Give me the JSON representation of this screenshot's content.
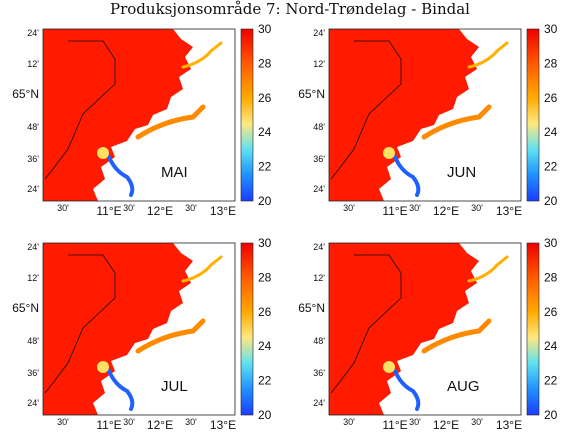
{
  "title": "Produksjonsområde 7: Nord-Trøndelag - Bindal",
  "map": {
    "lat_ticks": [
      "24'",
      "12'",
      "65°N",
      "48'",
      "36'",
      "24'"
    ],
    "lon_ticks": [
      "30'",
      "11°E",
      "30'",
      "12°E",
      "30'",
      "13°E"
    ],
    "colorbar": {
      "min": 20,
      "max": 30,
      "ticks": [
        30,
        28,
        26,
        24,
        22,
        20
      ],
      "colors": [
        "#ff0000",
        "#ff6a00",
        "#ffb400",
        "#ffee55",
        "#44ddee",
        "#2070ff",
        "#1010cc"
      ]
    },
    "land_color": "#ffffff",
    "sea_color": "#ff1a00"
  },
  "panels": [
    {
      "month": "MAI"
    },
    {
      "month": "JUN"
    },
    {
      "month": "JUL"
    },
    {
      "month": "AUG"
    }
  ]
}
